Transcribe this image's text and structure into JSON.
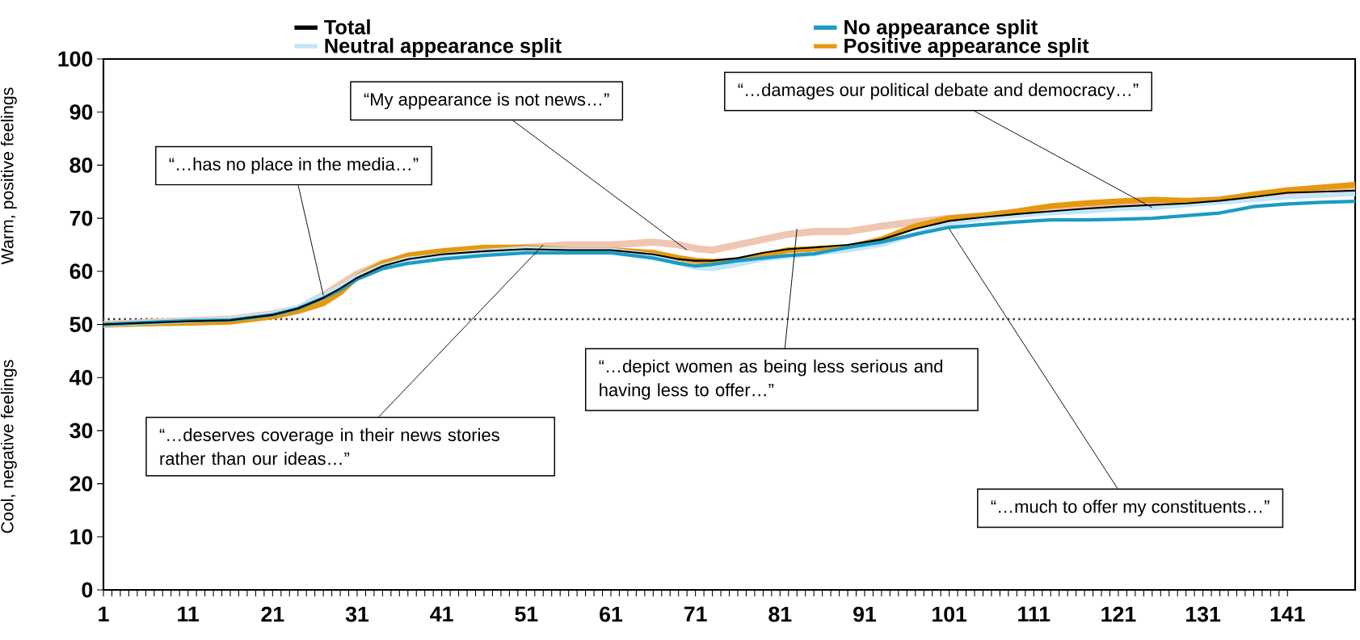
{
  "chart_data": {
    "type": "line",
    "ylabel": "Warm, positive feelings",
    "x": [
      1,
      11,
      16,
      21,
      24,
      27,
      29,
      31,
      34,
      37,
      41,
      46,
      51,
      56,
      61,
      66,
      69,
      71,
      73,
      76,
      79,
      82,
      85,
      89,
      93,
      97,
      101,
      105,
      109,
      113,
      117,
      121,
      125,
      129,
      133,
      137,
      141,
      145,
      149
    ],
    "series": [
      {
        "name": "Total",
        "color": "#000000",
        "values": [
          50,
          50.6,
          50.8,
          51.8,
          53,
          55,
          56.8,
          58.8,
          61,
          62.3,
          63.2,
          63.8,
          64.2,
          64,
          64,
          63.2,
          62.3,
          62,
          62,
          62.5,
          63.5,
          64.2,
          64.5,
          65,
          66,
          68,
          69.5,
          70.2,
          70.8,
          71.3,
          71.8,
          72.2,
          72.5,
          72.8,
          73.3,
          74,
          74.8,
          75,
          75.2
        ]
      },
      {
        "name": "No appearance split",
        "color": "#1b9bc4",
        "values": [
          50,
          50.7,
          50.8,
          51.8,
          53,
          55,
          56.5,
          58.5,
          60.5,
          61.5,
          62.3,
          63,
          63.5,
          63.5,
          63.5,
          62.5,
          61.5,
          61,
          61.3,
          62,
          62.5,
          63,
          63.3,
          64.5,
          65.5,
          67,
          68.3,
          68.8,
          69.3,
          69.7,
          69.7,
          69.8,
          70,
          70.5,
          71,
          72.2,
          72.7,
          73,
          73.2
        ]
      },
      {
        "name": "Neutral appearance split",
        "color": "#c3e6f7",
        "values": [
          50,
          50.7,
          51,
          52,
          53.2,
          55.5,
          57,
          59,
          61,
          62.3,
          63,
          63.8,
          64.3,
          64,
          64,
          63,
          61.5,
          60.7,
          60.5,
          61.3,
          62.3,
          62.8,
          63.3,
          64,
          65,
          67,
          69,
          70,
          70.5,
          71,
          71.3,
          71.8,
          72,
          72.5,
          73,
          73.5,
          74,
          74.3,
          74.6
        ]
      },
      {
        "name": "Positive appearance split",
        "color": "#e6990f",
        "values": [
          50,
          50.3,
          50.5,
          51.5,
          52.5,
          54,
          56,
          59,
          61.5,
          63,
          63.8,
          64.5,
          64.5,
          64,
          64,
          63.5,
          62.5,
          62,
          61.8,
          62,
          63,
          64,
          64.2,
          64.5,
          66,
          68.5,
          70,
          70.5,
          71.3,
          72.3,
          72.8,
          73.2,
          73.5,
          73.3,
          73.5,
          74.5,
          75.3,
          75.8,
          76.3
        ]
      },
      {
        "color": "#efc6b1",
        "values": [
          50,
          50.7,
          51,
          52,
          53,
          55.5,
          57.5,
          59.5,
          61.5,
          62.5,
          63.5,
          64,
          64.5,
          65,
          65,
          65.5,
          65,
          64.3,
          64,
          65,
          66,
          67,
          67.5,
          67.5,
          68.5,
          69.3,
          70,
          70.5,
          71,
          71.3,
          71.8,
          72.2,
          72.5,
          73,
          73.5,
          74.2,
          75,
          75.5,
          75.8
        ]
      }
    ],
    "xlim": [
      1,
      149
    ],
    "xticks": [
      1,
      11,
      21,
      31,
      41,
      51,
      61,
      71,
      81,
      91,
      101,
      111,
      121,
      131,
      141
    ],
    "ylim": [
      0,
      100
    ],
    "yticks": [
      0,
      10,
      20,
      30,
      40,
      50,
      60,
      70,
      80,
      90,
      100
    ],
    "ref_lines": [
      {
        "axis": "y",
        "value": 51,
        "color": "#404040",
        "line_style": "dotted"
      }
    ],
    "legend": "top",
    "line_style": "solid",
    "annotations": [
      {
        "text": "“…has no place in the media…”",
        "x": 27,
        "y": 55.5
      },
      {
        "text": "“My appearance is not news…”",
        "x": 70,
        "y": 64
      },
      {
        "text": "“…damages our political debate and democracy…”",
        "x": 125,
        "y": 72
      },
      {
        "text": "“…deserves coverage in their news stories rather than our ideas…”",
        "x": 53,
        "y": 65
      },
      {
        "text": "“…depict women as being less serious and having less to offer…”",
        "x": 83,
        "y": 68
      },
      {
        "text": "“…much to offer my constituents…”",
        "x": 101,
        "y": 68
      },
      "Cool, negative feelings"
    ]
  }
}
